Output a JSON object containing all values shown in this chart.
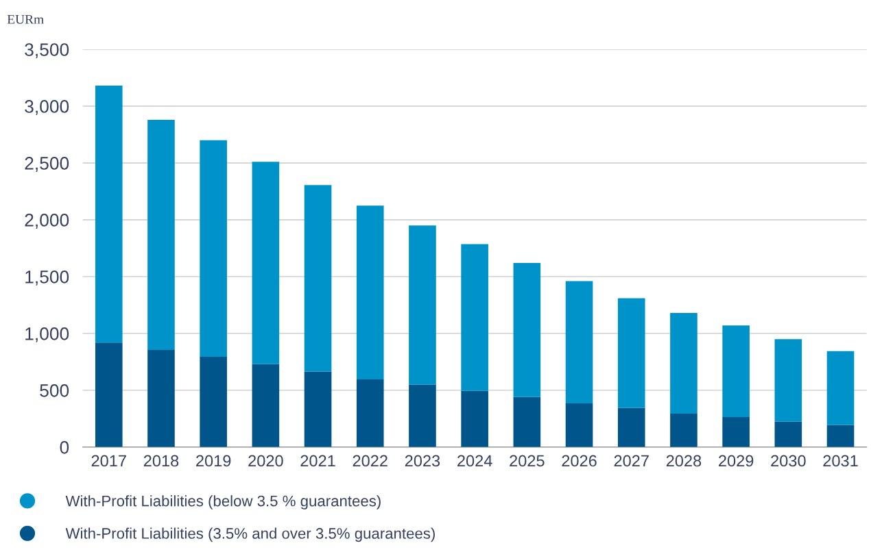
{
  "chart_data": {
    "type": "bar",
    "stacked": true,
    "ylabel": "EURm",
    "categories": [
      "2017",
      "2018",
      "2019",
      "2020",
      "2021",
      "2022",
      "2023",
      "2024",
      "2025",
      "2026",
      "2027",
      "2028",
      "2029",
      "2030",
      "2031"
    ],
    "series": [
      {
        "name": "With-Profit Liabilities (3.5% and over 3.5% guarantees)",
        "color": "#00558a",
        "values": [
          920,
          855,
          795,
          730,
          665,
          595,
          550,
          495,
          440,
          385,
          345,
          295,
          265,
          225,
          195
        ]
      },
      {
        "name": "With-Profit Liabilities (below 3.5 % guarantees)",
        "color": "#0093c9",
        "values": [
          2260,
          2025,
          1905,
          1780,
          1640,
          1530,
          1400,
          1290,
          1180,
          1075,
          965,
          885,
          805,
          725,
          650
        ]
      }
    ],
    "ylim": [
      0,
      3500
    ],
    "yticks": [
      0,
      {
        "value": 500,
        "label": "500"
      },
      {
        "value": 1000,
        "label": "1,000"
      },
      {
        "value": 1500,
        "label": "1,500"
      },
      {
        "value": 2000,
        "label": "2,000"
      },
      {
        "value": 2500,
        "label": "2,500"
      },
      {
        "value": 3000,
        "label": "3,000"
      },
      {
        "value": 3500,
        "label": "3,500"
      }
    ],
    "grid": "y",
    "legend": "bottom",
    "marker": "circle"
  }
}
